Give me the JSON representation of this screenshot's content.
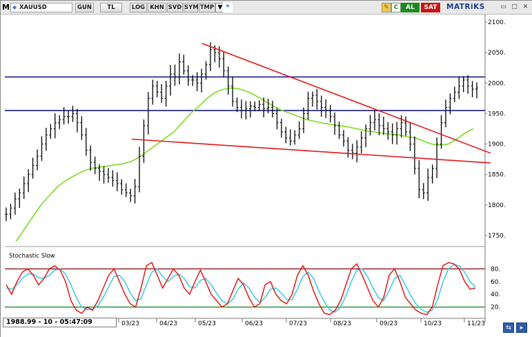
{
  "toolbar": {
    "m_label": "M",
    "symbol": "XAUUSD",
    "period_buttons": [
      "GUN",
      "TL",
      "LOG",
      "KHN",
      "SVD",
      "SYM",
      "TMP"
    ],
    "buy_label": "AL",
    "sell_label": "SAT",
    "brand": "MATRiKS"
  },
  "status": {
    "readout": "1988.99 - 10 - 05:47:09"
  },
  "colors": {
    "price_bars": "#000000",
    "moving_average": "#7cdc1e",
    "trend_lines": "#e01818",
    "support_resistance": "#1a1a8c",
    "stoch_k": "#e01818",
    "stoch_d": "#3cc8e0",
    "stoch_upper": "#8b0000",
    "stoch_lower": "#108010"
  },
  "chart_data": {
    "type": "ohlc",
    "instrument": "XAUUSD",
    "x_tick_labels": [
      "03/23",
      "04/23",
      "05/23",
      "06/23",
      "07/23",
      "08/23",
      "09/23",
      "10/23",
      "11/23"
    ],
    "y_tick_labels": [
      "2100.",
      "2050.",
      "2000.",
      "1950.",
      "1900.",
      "1850.",
      "1800.",
      "1750."
    ],
    "ylim": [
      1735,
      2110
    ],
    "horizontal_levels": [
      2010,
      1955
    ],
    "trend_lines": [
      {
        "from": [
          "05/23",
          2065
        ],
        "to": [
          "11/23+",
          1885
        ]
      },
      {
        "from": [
          "03/23",
          1908
        ],
        "to": [
          "11/23+",
          1869
        ]
      }
    ],
    "price_path": [
      1785,
      1795,
      1810,
      1820,
      1835,
      1850,
      1865,
      1880,
      1900,
      1915,
      1925,
      1935,
      1940,
      1945,
      1945,
      1950,
      1935,
      1915,
      1890,
      1870,
      1860,
      1855,
      1850,
      1845,
      1840,
      1835,
      1825,
      1820,
      1815,
      1830,
      1880,
      1930,
      1975,
      1995,
      1985,
      1975,
      1995,
      2015,
      2010,
      2035,
      2020,
      2005,
      2005,
      2000,
      2015,
      2030,
      2055,
      2050,
      2040,
      2020,
      1995,
      1970,
      1960,
      1955,
      1958,
      1962,
      1960,
      1965,
      1958,
      1960,
      1950,
      1935,
      1920,
      1910,
      1905,
      1915,
      1925,
      1950,
      1975,
      1980,
      1970,
      1960,
      1955,
      1945,
      1930,
      1915,
      1905,
      1890,
      1885,
      1895,
      1910,
      1925,
      1935,
      1940,
      1930,
      1925,
      1920,
      1915,
      1925,
      1935,
      1920,
      1900,
      1860,
      1825,
      1820,
      1845,
      1860,
      1900,
      1935,
      1960,
      1975,
      1985,
      1995,
      2005,
      1995,
      1990,
      1992
    ],
    "moving_average": [
      1740,
      1760,
      1780,
      1800,
      1815,
      1830,
      1840,
      1848,
      1855,
      1860,
      1862,
      1864,
      1866,
      1868,
      1872,
      1880,
      1890,
      1900,
      1910,
      1920,
      1935,
      1950,
      1962,
      1975,
      1985,
      1990,
      1992,
      1990,
      1985,
      1978,
      1970,
      1962,
      1955,
      1950,
      1945,
      1940,
      1937,
      1934,
      1932,
      1930,
      1928,
      1925,
      1922,
      1920,
      1918,
      1916,
      1915,
      1912,
      1910,
      1905,
      1900,
      1898,
      1900,
      1908,
      1918,
      1925
    ],
    "stochastic": {
      "label": "Stochastic Slow",
      "y_tick_labels": [
        "80.",
        "60.",
        "40.",
        "20."
      ],
      "ylim": [
        0,
        100
      ],
      "upper_level": 80,
      "lower_level": 20,
      "k": [
        55,
        40,
        60,
        75,
        80,
        70,
        55,
        65,
        80,
        85,
        78,
        60,
        30,
        15,
        10,
        20,
        15,
        30,
        50,
        70,
        80,
        60,
        40,
        25,
        20,
        50,
        85,
        90,
        70,
        50,
        65,
        80,
        70,
        50,
        40,
        60,
        78,
        60,
        40,
        30,
        20,
        25,
        45,
        65,
        55,
        35,
        20,
        25,
        55,
        60,
        40,
        30,
        25,
        40,
        70,
        85,
        70,
        45,
        25,
        10,
        8,
        15,
        30,
        55,
        80,
        88,
        70,
        50,
        30,
        20,
        35,
        70,
        80,
        60,
        35,
        25,
        15,
        10,
        8,
        20,
        55,
        85,
        90,
        88,
        80,
        60,
        48,
        50
      ],
      "d": [
        50,
        48,
        55,
        65,
        72,
        72,
        66,
        65,
        70,
        78,
        80,
        72,
        55,
        35,
        20,
        16,
        17,
        22,
        35,
        52,
        68,
        70,
        60,
        42,
        30,
        33,
        55,
        75,
        80,
        68,
        60,
        68,
        72,
        65,
        52,
        50,
        62,
        65,
        55,
        42,
        30,
        25,
        32,
        48,
        58,
        50,
        36,
        27,
        35,
        48,
        50,
        42,
        32,
        32,
        48,
        68,
        75,
        65,
        45,
        28,
        15,
        12,
        20,
        38,
        60,
        78,
        80,
        68,
        50,
        35,
        30,
        45,
        65,
        70,
        55,
        38,
        25,
        16,
        12,
        15,
        32,
        60,
        80,
        87,
        85,
        75,
        60,
        52
      ]
    }
  }
}
